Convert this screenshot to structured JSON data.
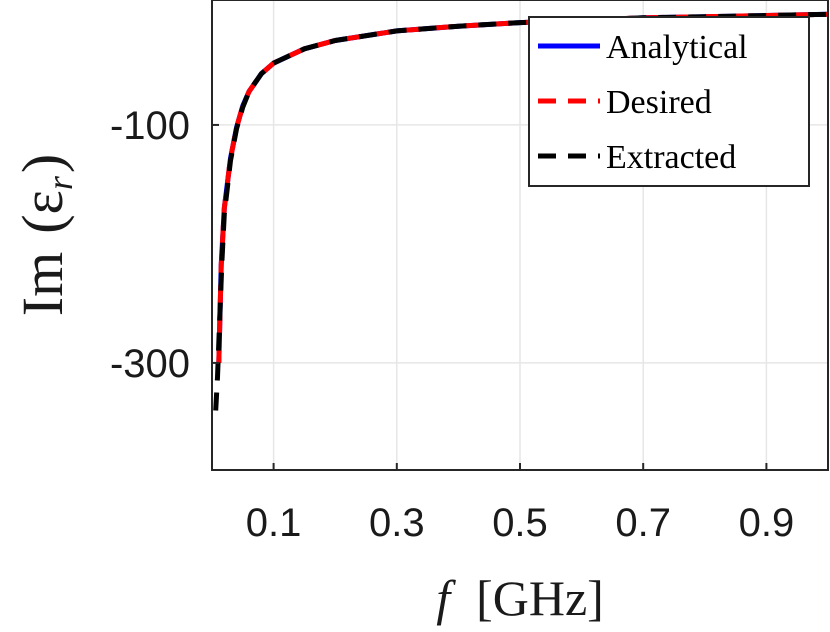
{
  "chart_data": {
    "type": "line",
    "xlabel": {
      "italic": "f",
      "rest": "[GHz]"
    },
    "ylabel": {
      "text": "Im",
      "symbol": "(ε",
      "sub": "r",
      "close": ")"
    },
    "xlim": [
      0.0,
      1.0
    ],
    "ylim": [
      -390,
      5
    ],
    "xticks": [
      0.1,
      0.3,
      0.5,
      0.7,
      0.9
    ],
    "xtick_labels": [
      "0.1",
      "0.3",
      "0.5",
      "0.7",
      "0.9"
    ],
    "yticks": [
      -100,
      -300
    ],
    "ytick_labels": [
      "-100",
      "-300"
    ],
    "grid": true,
    "legend_position": "top-right",
    "series": [
      {
        "name": "Analytical",
        "color": "#0000ff",
        "style": "solid",
        "x": [
          0.011,
          0.015,
          0.02,
          0.03,
          0.04,
          0.05,
          0.06,
          0.08,
          0.1,
          0.15,
          0.2,
          0.3,
          0.4,
          0.5,
          0.6,
          0.7,
          0.8,
          0.9,
          1.0
        ],
        "y": [
          -300,
          -218,
          -170,
          -128,
          -102,
          -84,
          -72,
          -57,
          -48,
          -36,
          -29,
          -21,
          -17,
          -14,
          -12,
          -10,
          -9,
          -8,
          -7
        ]
      },
      {
        "name": "Desired",
        "color": "#ff0000",
        "style": "dashed",
        "x": [
          0.011,
          0.015,
          0.02,
          0.03,
          0.04,
          0.05,
          0.06,
          0.08,
          0.1,
          0.15,
          0.2,
          0.3,
          0.4,
          0.5,
          0.6,
          0.7,
          0.8,
          0.9,
          1.0
        ],
        "y": [
          -300,
          -218,
          -170,
          -128,
          -102,
          -84,
          -72,
          -57,
          -48,
          -36,
          -29,
          -21,
          -17,
          -14,
          -12,
          -10,
          -9,
          -8,
          -7
        ]
      },
      {
        "name": "Extracted",
        "color": "#000000",
        "style": "dashed",
        "x": [
          0.006,
          0.009,
          0.012,
          0.016,
          0.02,
          0.03,
          0.04,
          0.05,
          0.06,
          0.08,
          0.1,
          0.15,
          0.2,
          0.3,
          0.4,
          0.5,
          0.6,
          0.7,
          0.8,
          0.9,
          1.0
        ],
        "y": [
          -340,
          -312,
          -270,
          -215,
          -175,
          -130,
          -103,
          -85,
          -72,
          -57,
          -48,
          -36,
          -29,
          -21,
          -17,
          -14,
          -12,
          -10,
          -9,
          -8,
          -7
        ]
      }
    ]
  }
}
